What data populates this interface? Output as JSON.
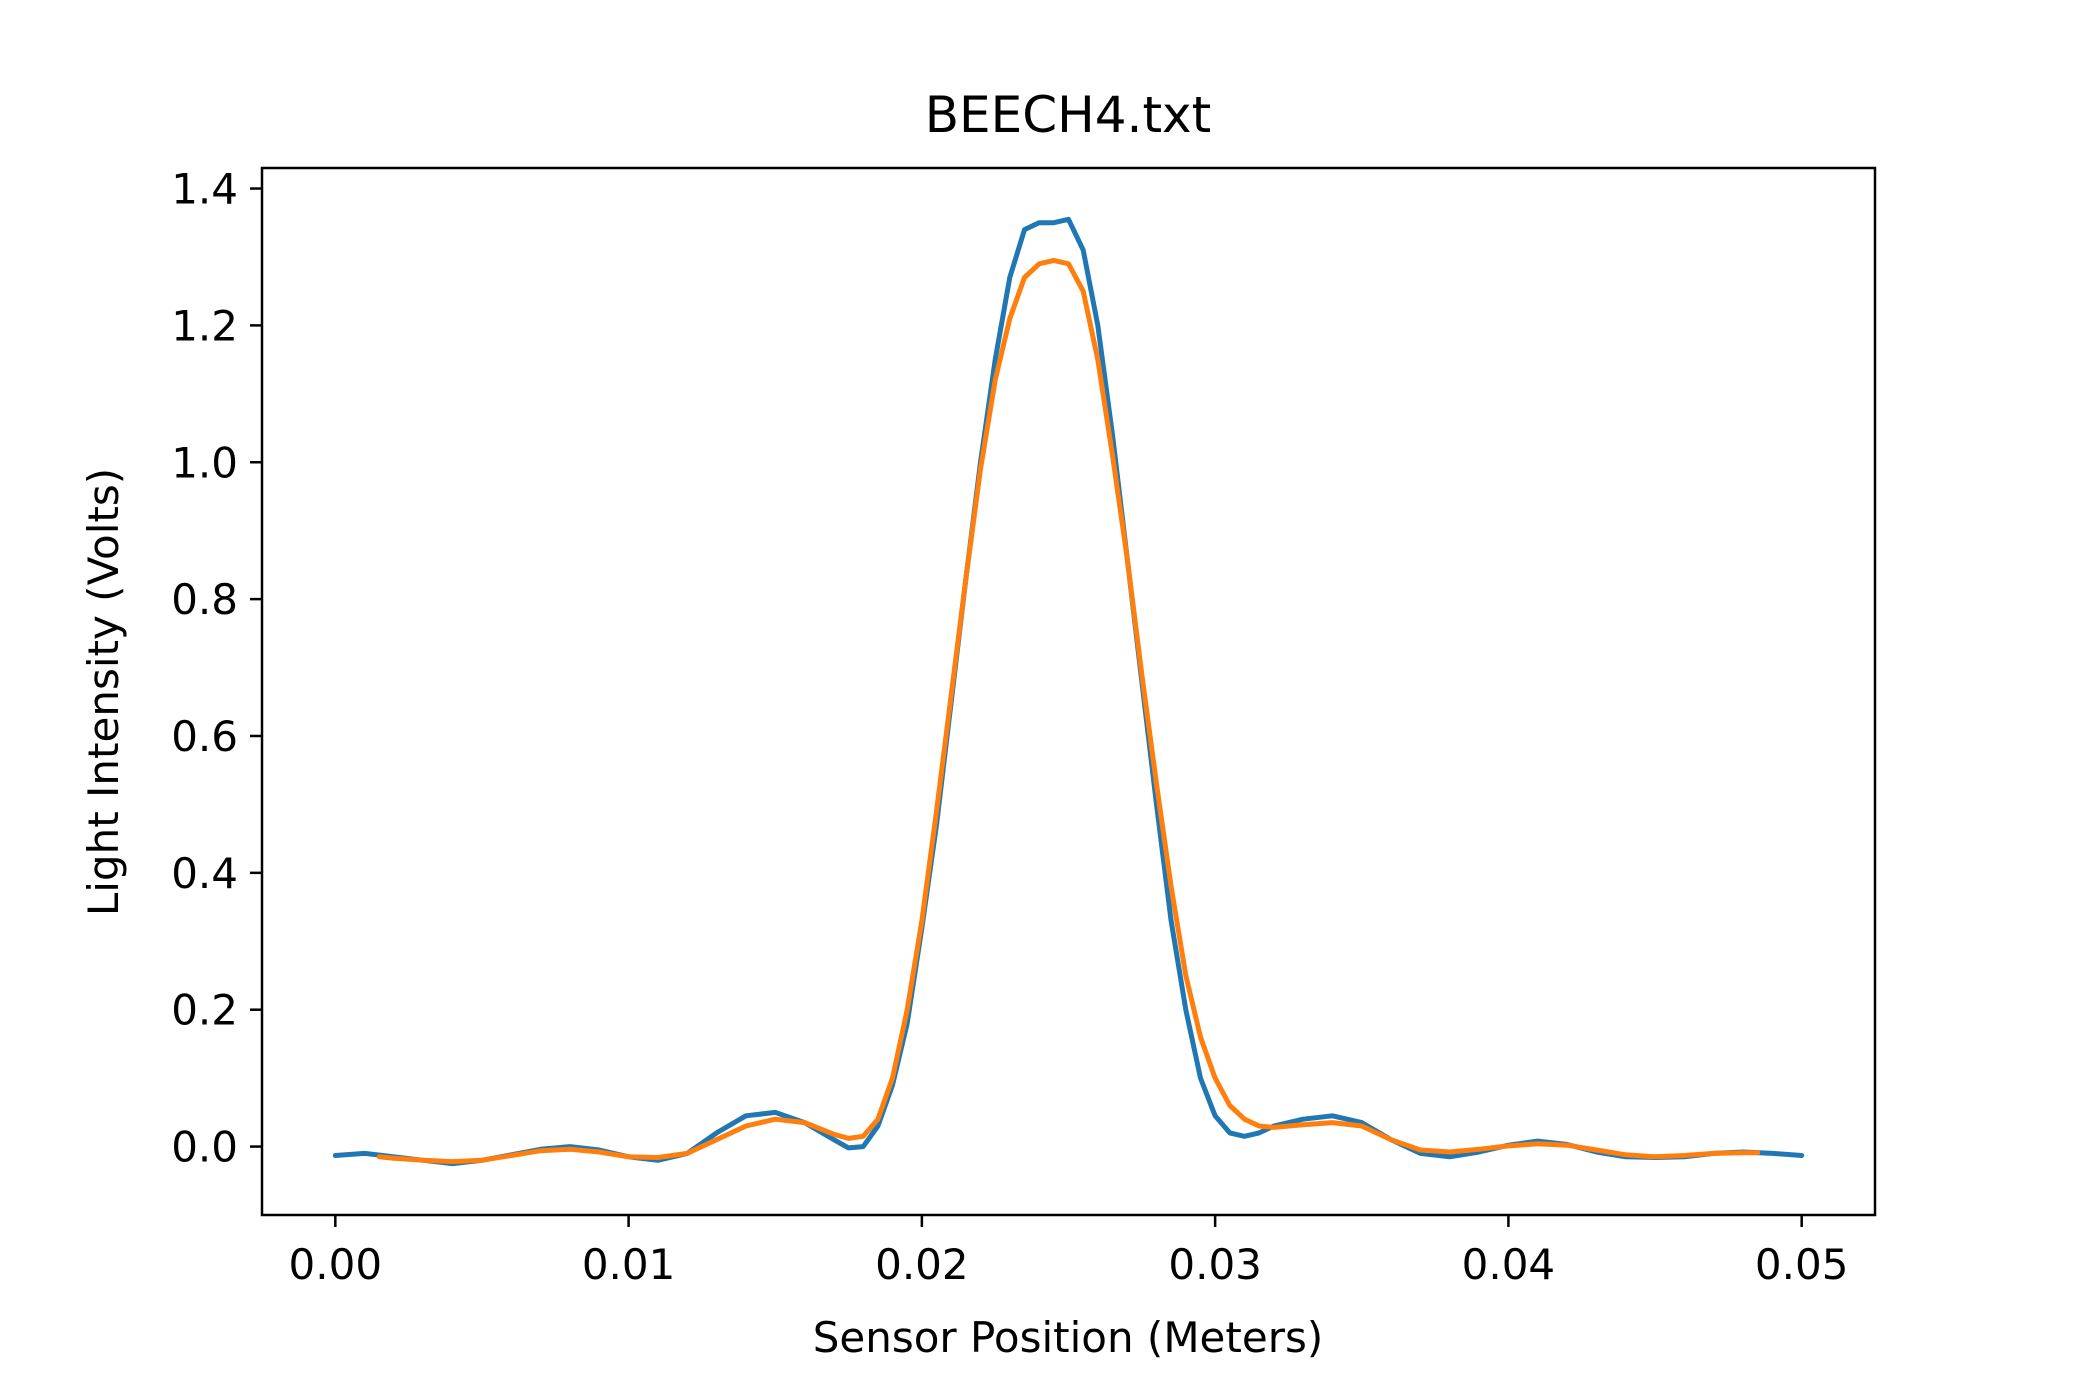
{
  "chart_data": {
    "type": "line",
    "title": "BEECH4.txt",
    "xlabel": "Sensor Position (Meters)",
    "ylabel": "Light Intensity (Volts)",
    "xlim": [
      -0.0025,
      0.0525
    ],
    "ylim": [
      -0.1,
      1.43
    ],
    "grid": false,
    "legend": "none",
    "x_ticks": [
      0.0,
      0.01,
      0.02,
      0.03,
      0.04,
      0.05
    ],
    "x_tick_labels": [
      "0.00",
      "0.01",
      "0.02",
      "0.03",
      "0.04",
      "0.05"
    ],
    "y_ticks": [
      0.0,
      0.2,
      0.4,
      0.6,
      0.8,
      1.0,
      1.2,
      1.4
    ],
    "y_tick_labels": [
      "0.0",
      "0.2",
      "0.4",
      "0.6",
      "0.8",
      "1.0",
      "1.2",
      "1.4"
    ],
    "series": [
      {
        "color": "#1f77b4",
        "x": [
          0.0,
          0.001,
          0.002,
          0.003,
          0.004,
          0.005,
          0.006,
          0.007,
          0.008,
          0.009,
          0.01,
          0.011,
          0.012,
          0.013,
          0.014,
          0.015,
          0.016,
          0.017,
          0.0175,
          0.018,
          0.0185,
          0.019,
          0.0195,
          0.02,
          0.0205,
          0.021,
          0.0215,
          0.022,
          0.0225,
          0.023,
          0.0235,
          0.024,
          0.0245,
          0.025,
          0.0255,
          0.026,
          0.0265,
          0.027,
          0.0275,
          0.028,
          0.0285,
          0.029,
          0.0295,
          0.03,
          0.0305,
          0.031,
          0.0315,
          0.032,
          0.033,
          0.034,
          0.035,
          0.036,
          0.037,
          0.038,
          0.039,
          0.04,
          0.041,
          0.042,
          0.043,
          0.044,
          0.045,
          0.046,
          0.047,
          0.048,
          0.049,
          0.05
        ],
        "y": [
          -0.013,
          -0.01,
          -0.015,
          -0.02,
          -0.025,
          -0.02,
          -0.012,
          -0.004,
          0.0,
          -0.005,
          -0.015,
          -0.02,
          -0.01,
          0.02,
          0.045,
          0.05,
          0.035,
          0.01,
          -0.002,
          0.0,
          0.03,
          0.09,
          0.18,
          0.32,
          0.47,
          0.65,
          0.83,
          1.0,
          1.15,
          1.27,
          1.34,
          1.35,
          1.35,
          1.355,
          1.31,
          1.2,
          1.04,
          0.86,
          0.68,
          0.5,
          0.33,
          0.2,
          0.1,
          0.045,
          0.02,
          0.015,
          0.02,
          0.03,
          0.04,
          0.045,
          0.035,
          0.01,
          -0.01,
          -0.015,
          -0.008,
          0.002,
          0.008,
          0.003,
          -0.008,
          -0.015,
          -0.016,
          -0.015,
          -0.01,
          -0.008,
          -0.01,
          -0.013
        ]
      },
      {
        "color": "#ff7f0e",
        "x": [
          0.0015,
          0.002,
          0.003,
          0.004,
          0.005,
          0.006,
          0.007,
          0.008,
          0.009,
          0.01,
          0.011,
          0.012,
          0.013,
          0.014,
          0.015,
          0.016,
          0.017,
          0.0175,
          0.018,
          0.0185,
          0.019,
          0.0195,
          0.02,
          0.0205,
          0.021,
          0.0215,
          0.022,
          0.0225,
          0.023,
          0.0235,
          0.024,
          0.0245,
          0.025,
          0.0255,
          0.026,
          0.0265,
          0.027,
          0.0275,
          0.028,
          0.0285,
          0.029,
          0.0295,
          0.03,
          0.0305,
          0.031,
          0.0315,
          0.032,
          0.033,
          0.034,
          0.035,
          0.036,
          0.037,
          0.038,
          0.039,
          0.04,
          0.041,
          0.042,
          0.043,
          0.044,
          0.045,
          0.046,
          0.047,
          0.048,
          0.0485
        ],
        "y": [
          -0.015,
          -0.017,
          -0.02,
          -0.022,
          -0.02,
          -0.013,
          -0.006,
          -0.004,
          -0.008,
          -0.015,
          -0.016,
          -0.01,
          0.01,
          0.03,
          0.04,
          0.035,
          0.018,
          0.012,
          0.015,
          0.04,
          0.1,
          0.2,
          0.33,
          0.49,
          0.66,
          0.83,
          0.99,
          1.12,
          1.21,
          1.27,
          1.29,
          1.295,
          1.29,
          1.25,
          1.15,
          1.01,
          0.86,
          0.69,
          0.53,
          0.38,
          0.25,
          0.16,
          0.1,
          0.06,
          0.04,
          0.03,
          0.028,
          0.032,
          0.035,
          0.03,
          0.01,
          -0.005,
          -0.008,
          -0.004,
          0.001,
          0.004,
          0.002,
          -0.005,
          -0.012,
          -0.015,
          -0.013,
          -0.01,
          -0.009,
          -0.009
        ]
      }
    ]
  }
}
